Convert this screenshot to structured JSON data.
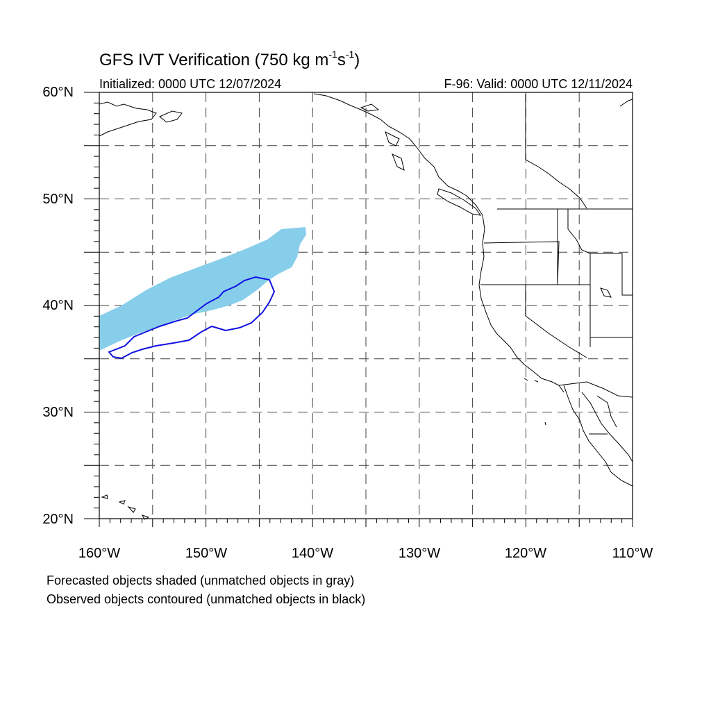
{
  "header": {
    "title_main": "GFS IVT Verification (750 kg m",
    "title_exp1": "-1",
    "title_mid": "s",
    "title_exp2": "-1",
    "title_end": ")",
    "initialized": "Initialized: 0000 UTC 12/07/2024",
    "valid": "F-96: Valid: 0000 UTC 12/11/2024"
  },
  "axes": {
    "lon_labels": [
      "160°W",
      "150°W",
      "140°W",
      "130°W",
      "120°W",
      "110°W"
    ],
    "lat_labels": [
      "60°N",
      "50°N",
      "40°N",
      "30°N",
      "20°N"
    ],
    "lon_range": [
      -160,
      -110
    ],
    "lat_range": [
      20,
      60
    ],
    "gridlines": "dashed, every 5 degrees"
  },
  "legend": {
    "line1": "Forecasted objects shaded (unmatched objects in gray)",
    "line2": "Observed objects contoured (unmatched objects in black)"
  },
  "objects": {
    "forecast_fill_color": "#87ceeb",
    "observed_contour_color": "#1010e0",
    "coast_color": "#000000"
  }
}
